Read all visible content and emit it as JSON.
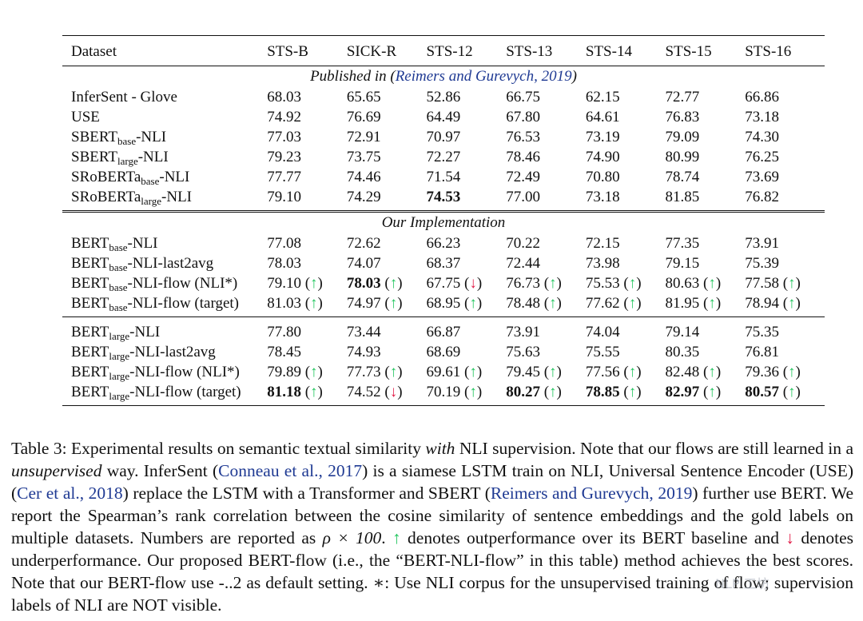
{
  "table": {
    "columns": [
      "Dataset",
      "STS-B",
      "SICK-R",
      "STS-12",
      "STS-13",
      "STS-14",
      "STS-15",
      "STS-16"
    ],
    "sections": {
      "published_prefix": "Published in (",
      "published_cite": "Reimers and Gurevych, 2019",
      "published_suffix": ")",
      "ours": "Our Implementation"
    },
    "rows": [
      {
        "base": "InferSent - Glove",
        "sub": "",
        "suffix": "",
        "cells": [
          "68.03",
          "65.65",
          "52.86",
          "66.75",
          "62.15",
          "72.77",
          "66.86"
        ]
      },
      {
        "base": "USE",
        "sub": "",
        "suffix": "",
        "cells": [
          "74.92",
          "76.69",
          "64.49",
          "67.80",
          "64.61",
          "76.83",
          "73.18"
        ]
      },
      {
        "base": "SBERT",
        "sub": "base",
        "suffix": "-NLI",
        "cells": [
          "77.03",
          "72.91",
          "70.97",
          "76.53",
          "73.19",
          "79.09",
          "74.30"
        ]
      },
      {
        "base": "SBERT",
        "sub": "large",
        "suffix": "-NLI",
        "cells": [
          "79.23",
          "73.75",
          "72.27",
          "78.46",
          "74.90",
          "80.99",
          "76.25"
        ]
      },
      {
        "base": "SRoBERTa",
        "sub": "base",
        "suffix": "-NLI",
        "cells": [
          "77.77",
          "74.46",
          "71.54",
          "72.49",
          "70.80",
          "78.74",
          "73.69"
        ]
      },
      {
        "base": "SRoBERTa",
        "sub": "large",
        "suffix": "-NLI",
        "cells": [
          "79.10",
          "74.29",
          "74.53",
          "77.00",
          "73.18",
          "81.85",
          "76.82"
        ]
      },
      {
        "base": "BERT",
        "sub": "base",
        "suffix": "-NLI",
        "cells": [
          "77.08",
          "72.62",
          "66.23",
          "70.22",
          "72.15",
          "77.35",
          "73.91"
        ]
      },
      {
        "base": "BERT",
        "sub": "base",
        "suffix": "-NLI-last2avg",
        "cells": [
          "78.03",
          "74.07",
          "68.37",
          "72.44",
          "73.98",
          "79.15",
          "75.39"
        ]
      },
      {
        "base": "BERT",
        "sub": "base",
        "suffix": "-NLI-flow (NLI*)",
        "cells": [
          "79.10",
          "78.03",
          "67.75",
          "76.73",
          "75.53",
          "80.63",
          "77.58"
        ]
      },
      {
        "base": "BERT",
        "sub": "base",
        "suffix": "-NLI-flow (target)",
        "cells": [
          "81.03",
          "74.97",
          "68.95",
          "78.48",
          "77.62",
          "81.95",
          "78.94"
        ]
      },
      {
        "base": "BERT",
        "sub": "large",
        "suffix": "-NLI",
        "cells": [
          "77.80",
          "73.44",
          "66.87",
          "73.91",
          "74.04",
          "79.14",
          "75.35"
        ]
      },
      {
        "base": "BERT",
        "sub": "large",
        "suffix": "-NLI-last2avg",
        "cells": [
          "78.45",
          "74.93",
          "68.69",
          "75.63",
          "75.55",
          "80.35",
          "76.81"
        ]
      },
      {
        "base": "BERT",
        "sub": "large",
        "suffix": "-NLI-flow (NLI*)",
        "cells": [
          "79.89",
          "77.73",
          "69.61",
          "79.45",
          "77.56",
          "82.48",
          "79.36"
        ]
      },
      {
        "base": "BERT",
        "sub": "large",
        "suffix": "-NLI-flow (target)",
        "cells": [
          "81.18",
          "74.52",
          "70.19",
          "80.27",
          "78.85",
          "82.97",
          "80.57"
        ]
      }
    ],
    "arrow_up": "↑",
    "arrow_down": "↓",
    "paren_open": "(",
    "paren_close": ")"
  },
  "caption": {
    "p1": "Table 3: Experimental results on semantic textual similarity ",
    "p1_em": "with",
    "p2": " NLI supervision. Note that our flows are still learned in a ",
    "p2_em": "unsupervised",
    "p3": " way. InferSent (",
    "cite1": "Conneau et al., 2017",
    "p4": ") is a siamese LSTM train on NLI, Universal Sentence Encoder (USE) (",
    "cite2": "Cer et al., 2018",
    "p5": ") replace the LSTM with a Transformer and SBERT (",
    "cite3": "Reimers and Gurevych, 2019",
    "p6": ") further use BERT. We report the Spearman’s rank correlation between the cosine similarity of sentence embeddings and the gold labels on multiple datasets. Numbers are reported as ",
    "rho": "ρ × 100",
    "p7": ". ",
    "arrow_up": "↑",
    "p8": " denotes outperformance over its BERT baseline and ",
    "arrow_down": "↓",
    "p9": " denotes underperformance. Our proposed BERT-flow (i.e., the “BERT-NLI-flow” in this table) method achieves the best scores. Note that our BERT-flow use -",
    "p9_overlap": "..2",
    "p9_end": " as default setting. ∗: Use NLI corpus for the unsupervised training of flow; supervision labels of NLI are NOT visible."
  },
  "watermark": "NLP 工坊"
}
